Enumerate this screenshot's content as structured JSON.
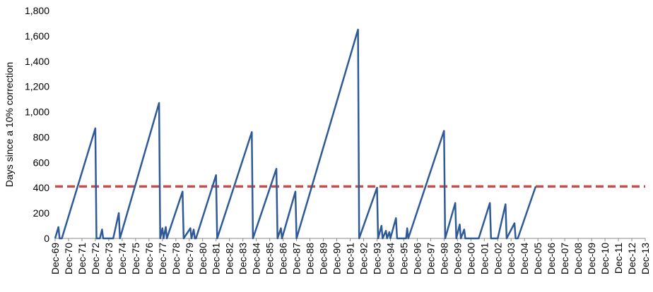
{
  "chart_data": {
    "type": "line",
    "title": "",
    "xlabel": "",
    "ylabel": "Days since a 10% correction",
    "ylim": [
      0,
      1800
    ],
    "xlim": [
      "1969-12",
      "2013-12"
    ],
    "yticks": [
      0,
      200,
      400,
      600,
      800,
      1000,
      1200,
      1400,
      1600,
      1800
    ],
    "ytick_labels": [
      "0",
      "200",
      "400",
      "600",
      "800",
      "1,000",
      "1,200",
      "1,400",
      "1,600",
      "1,800"
    ],
    "xtick_labels": [
      "Dec-69",
      "Dec-70",
      "Dec-71",
      "Dec-72",
      "Dec-73",
      "Dec-74",
      "Dec-75",
      "Dec-76",
      "Dec-77",
      "Dec-78",
      "Dec-79",
      "Dec-80",
      "Dec-81",
      "Dec-82",
      "Dec-83",
      "Dec-84",
      "Dec-85",
      "Dec-86",
      "Dec-87",
      "Dec-88",
      "Dec-89",
      "Dec-90",
      "Dec-91",
      "Dec-92",
      "Dec-93",
      "Dec-94",
      "Dec-95",
      "Dec-96",
      "Dec-97",
      "Dec-98",
      "Dec-99",
      "Dec-00",
      "Dec-01",
      "Dec-02",
      "Dec-03",
      "Dec-04",
      "Dec-05",
      "Dec-06",
      "Dec-07",
      "Dec-08",
      "Dec-09",
      "Dec-10",
      "Dec-11",
      "Dec-12",
      "Dec-13"
    ],
    "grid": false,
    "legend": "none",
    "series": [
      {
        "color": "#2e5b97",
        "points": [
          [
            "1969-12",
            0
          ],
          [
            "1970-03",
            90
          ],
          [
            "1970-04",
            0
          ],
          [
            "1970-06",
            0
          ],
          [
            "1972-12",
            870
          ],
          [
            "1973-01",
            0
          ],
          [
            "1973-04",
            0
          ],
          [
            "1973-06",
            70
          ],
          [
            "1973-07",
            0
          ],
          [
            "1974-04",
            0
          ],
          [
            "1974-09",
            200
          ],
          [
            "1974-10",
            0
          ],
          [
            "1977-09",
            1070
          ],
          [
            "1977-10",
            0
          ],
          [
            "1977-12",
            80
          ],
          [
            "1978-01",
            0
          ],
          [
            "1978-03",
            90
          ],
          [
            "1978-04",
            0
          ],
          [
            "1979-06",
            370
          ],
          [
            "1979-07",
            0
          ],
          [
            "1980-01",
            80
          ],
          [
            "1980-02",
            0
          ],
          [
            "1980-04",
            70
          ],
          [
            "1980-05",
            0
          ],
          [
            "1980-06",
            0
          ],
          [
            "1981-12",
            500
          ],
          [
            "1982-01",
            0
          ],
          [
            "1984-08",
            840
          ],
          [
            "1984-09",
            0
          ],
          [
            "1986-06",
            550
          ],
          [
            "1986-07",
            0
          ],
          [
            "1986-10",
            80
          ],
          [
            "1986-11",
            0
          ],
          [
            "1987-11",
            370
          ],
          [
            "1987-12",
            0
          ],
          [
            "1992-07",
            1650
          ],
          [
            "1992-08",
            0
          ],
          [
            "1993-12",
            400
          ],
          [
            "1994-01",
            0
          ],
          [
            "1994-04",
            100
          ],
          [
            "1994-05",
            0
          ],
          [
            "1994-08",
            60
          ],
          [
            "1994-09",
            0
          ],
          [
            "1994-11",
            50
          ],
          [
            "1994-12",
            0
          ],
          [
            "1995-05",
            160
          ],
          [
            "1995-06",
            0
          ],
          [
            "1996-02",
            0
          ],
          [
            "1996-03",
            80
          ],
          [
            "1996-04",
            0
          ],
          [
            "1998-12",
            850
          ],
          [
            "1999-01",
            0
          ],
          [
            "1999-10",
            280
          ],
          [
            "1999-11",
            0
          ],
          [
            "2000-02",
            110
          ],
          [
            "2000-03",
            0
          ],
          [
            "2000-06",
            70
          ],
          [
            "2000-07",
            0
          ],
          [
            "2001-07",
            0
          ],
          [
            "2002-05",
            280
          ],
          [
            "2002-06",
            0
          ],
          [
            "2002-12",
            0
          ],
          [
            "2003-07",
            270
          ],
          [
            "2003-08",
            0
          ],
          [
            "2004-03",
            120
          ],
          [
            "2004-04",
            0
          ],
          [
            "2004-06",
            0
          ],
          [
            "2005-10",
            410
          ]
        ]
      }
    ],
    "reference_line": {
      "y": 410,
      "color": "#c0504d",
      "style": "dashed"
    }
  }
}
